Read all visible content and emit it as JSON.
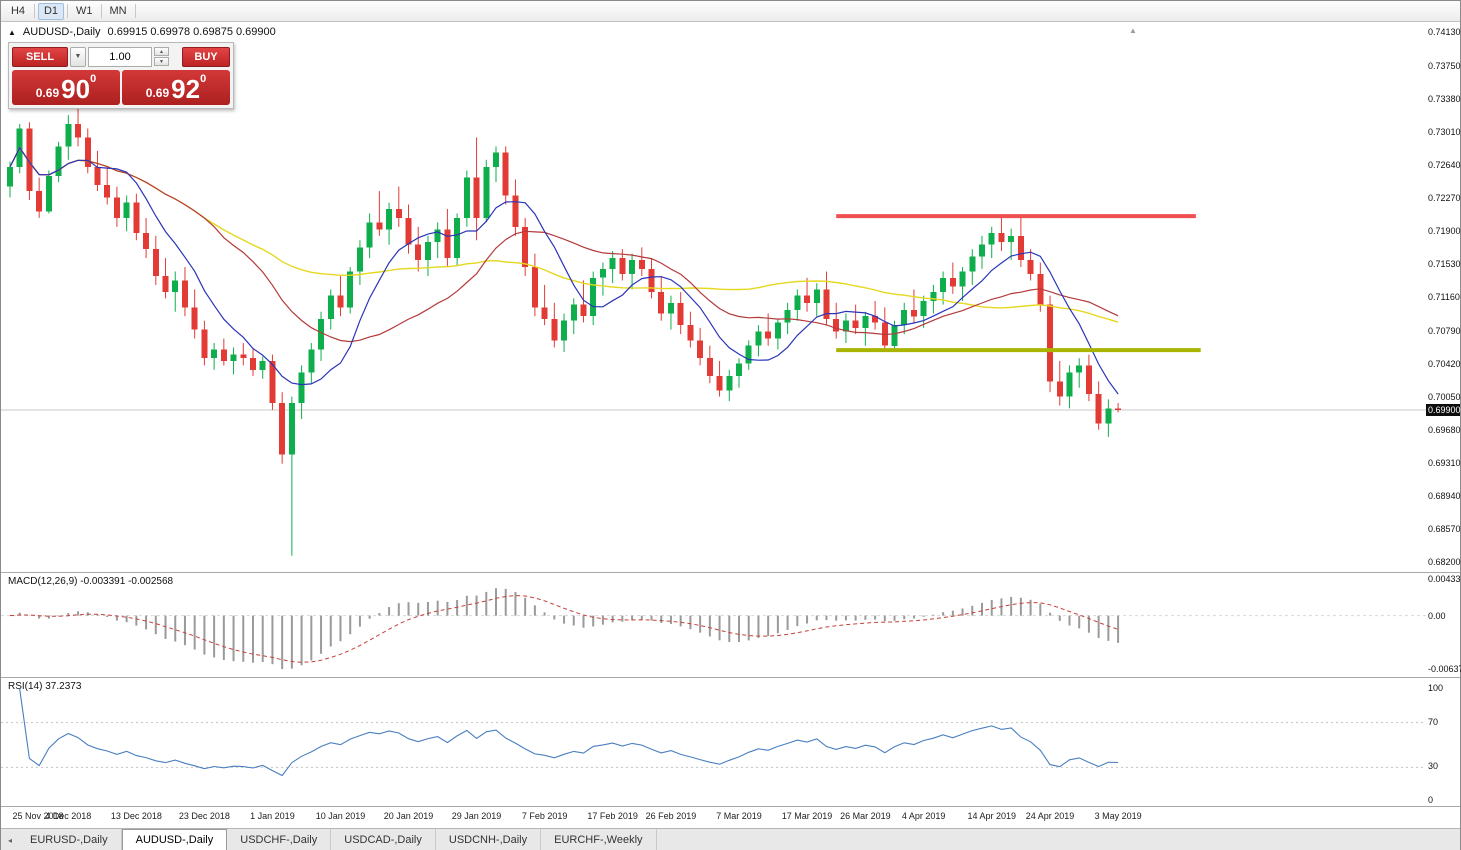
{
  "toolbar": {
    "buttons": [
      {
        "label": "H4",
        "active": false
      },
      {
        "label": "D1",
        "active": true
      },
      {
        "label": "W1",
        "active": false
      },
      {
        "label": "MN",
        "active": false
      }
    ]
  },
  "chart_header": {
    "marker": "▲",
    "symbol": "AUDUSD-,Daily",
    "ohlc": "0.69915 0.69978 0.69875 0.69900"
  },
  "trade_panel": {
    "sell_label": "SELL",
    "buy_label": "BUY",
    "volume": "1.00",
    "dropdown_glyph": "▼",
    "spin_up_glyph": "▲",
    "spin_down_glyph": "▼",
    "bid": {
      "prefix": "0.69",
      "big": "90",
      "sup": "0"
    },
    "ask": {
      "prefix": "0.69",
      "big": "92",
      "sup": "0"
    }
  },
  "price_axis": {
    "ticks": [
      "0.74130",
      "0.73750",
      "0.73380",
      "0.73010",
      "0.72640",
      "0.72270",
      "0.71900",
      "0.71530",
      "0.71160",
      "0.70790",
      "0.70420",
      "0.70050",
      "0.69680",
      "0.69310",
      "0.68940",
      "0.68570",
      "0.68200"
    ],
    "current": "0.69900"
  },
  "macd_panel": {
    "label": "MACD(12,26,9) -0.003391 -0.002568",
    "axis_ticks": [
      {
        "value": 0.004331,
        "label": "0.004331"
      },
      {
        "value": 0,
        "label": "0.00"
      },
      {
        "value": -0.006377,
        "label": "-0.006377"
      }
    ]
  },
  "rsi_panel": {
    "label": "RSI(14) 37.2373",
    "axis_ticks": [
      {
        "value": 100,
        "label": "100"
      },
      {
        "value": 70,
        "label": "70"
      },
      {
        "value": 30,
        "label": "30"
      },
      {
        "value": 0,
        "label": "0"
      }
    ],
    "dashed_levels": [
      70,
      30
    ]
  },
  "tabbar": {
    "scroll_left_glyph": "◂",
    "tabs": [
      {
        "label": "EURUSD-,Daily",
        "active": false
      },
      {
        "label": "AUDUSD-,Daily",
        "active": true
      },
      {
        "label": "USDCHF-,Daily",
        "active": false
      },
      {
        "label": "USDCAD-,Daily",
        "active": false
      },
      {
        "label": "USDCNH-,Daily",
        "active": false
      },
      {
        "label": "EURCHF-,Weekly",
        "active": false
      }
    ]
  },
  "chart_data": {
    "type": "candlestick",
    "symbol": "AUDUSD-",
    "timeframe": "Daily",
    "price_range": {
      "top": 0.7413,
      "bottom": 0.682
    },
    "current_price": 0.699,
    "x_labels": [
      {
        "label": "25 Nov 2018",
        "bar": 0
      },
      {
        "label": "4 Dec 2018",
        "bar": 6
      },
      {
        "label": "13 Dec 2018",
        "bar": 13
      },
      {
        "label": "23 Dec 2018",
        "bar": 20
      },
      {
        "label": "1 Jan 2019",
        "bar": 27
      },
      {
        "label": "10 Jan 2019",
        "bar": 34
      },
      {
        "label": "20 Jan 2019",
        "bar": 41
      },
      {
        "label": "29 Jan 2019",
        "bar": 48
      },
      {
        "label": "7 Feb 2019",
        "bar": 55
      },
      {
        "label": "17 Feb 2019",
        "bar": 62
      },
      {
        "label": "26 Feb 2019",
        "bar": 68
      },
      {
        "label": "7 Mar 2019",
        "bar": 75
      },
      {
        "label": "17 Mar 2019",
        "bar": 82
      },
      {
        "label": "26 Mar 2019",
        "bar": 88
      },
      {
        "label": "4 Apr 2019",
        "bar": 94
      },
      {
        "label": "14 Apr 2019",
        "bar": 101
      },
      {
        "label": "24 Apr 2019",
        "bar": 107
      },
      {
        "label": "3 May 2019",
        "bar": 114
      }
    ],
    "candles": [
      [
        0.724,
        0.7268,
        0.7228,
        0.7262
      ],
      [
        0.7262,
        0.731,
        0.7255,
        0.7305
      ],
      [
        0.7305,
        0.7312,
        0.7225,
        0.7235
      ],
      [
        0.7235,
        0.725,
        0.7205,
        0.7212
      ],
      [
        0.7212,
        0.7258,
        0.721,
        0.7252
      ],
      [
        0.7252,
        0.729,
        0.7245,
        0.7285
      ],
      [
        0.7285,
        0.732,
        0.727,
        0.731
      ],
      [
        0.731,
        0.733,
        0.7285,
        0.7295
      ],
      [
        0.7295,
        0.7305,
        0.7255,
        0.7262
      ],
      [
        0.7262,
        0.728,
        0.7235,
        0.7242
      ],
      [
        0.7242,
        0.7262,
        0.722,
        0.7228
      ],
      [
        0.7228,
        0.724,
        0.7195,
        0.7205
      ],
      [
        0.7205,
        0.723,
        0.719,
        0.7222
      ],
      [
        0.7222,
        0.7232,
        0.718,
        0.7188
      ],
      [
        0.7188,
        0.7205,
        0.716,
        0.717
      ],
      [
        0.717,
        0.7185,
        0.713,
        0.714
      ],
      [
        0.714,
        0.716,
        0.7115,
        0.7122
      ],
      [
        0.7122,
        0.7145,
        0.71,
        0.7135
      ],
      [
        0.7135,
        0.715,
        0.7095,
        0.7105
      ],
      [
        0.7105,
        0.7125,
        0.707,
        0.708
      ],
      [
        0.708,
        0.709,
        0.704,
        0.7048
      ],
      [
        0.7048,
        0.7065,
        0.7035,
        0.7058
      ],
      [
        0.7058,
        0.707,
        0.704,
        0.7045
      ],
      [
        0.7045,
        0.706,
        0.703,
        0.7052
      ],
      [
        0.7052,
        0.7065,
        0.704,
        0.7048
      ],
      [
        0.7048,
        0.7058,
        0.7028,
        0.7035
      ],
      [
        0.7035,
        0.705,
        0.7025,
        0.7045
      ],
      [
        0.7045,
        0.7052,
        0.699,
        0.6998
      ],
      [
        0.6998,
        0.701,
        0.693,
        0.694
      ],
      [
        0.694,
        0.7005,
        0.6827,
        0.6998
      ],
      [
        0.6998,
        0.704,
        0.698,
        0.7032
      ],
      [
        0.7032,
        0.7065,
        0.702,
        0.7058
      ],
      [
        0.7058,
        0.71,
        0.7045,
        0.7092
      ],
      [
        0.7092,
        0.7125,
        0.708,
        0.7118
      ],
      [
        0.7118,
        0.714,
        0.7095,
        0.7105
      ],
      [
        0.7105,
        0.715,
        0.7098,
        0.7145
      ],
      [
        0.7145,
        0.718,
        0.713,
        0.7172
      ],
      [
        0.7172,
        0.721,
        0.716,
        0.72
      ],
      [
        0.72,
        0.7235,
        0.7185,
        0.7192
      ],
      [
        0.7192,
        0.7222,
        0.7175,
        0.7215
      ],
      [
        0.7215,
        0.724,
        0.7195,
        0.7205
      ],
      [
        0.7205,
        0.722,
        0.7165,
        0.7175
      ],
      [
        0.7175,
        0.7195,
        0.7145,
        0.7158
      ],
      [
        0.7158,
        0.7185,
        0.714,
        0.7178
      ],
      [
        0.7178,
        0.72,
        0.716,
        0.7192
      ],
      [
        0.7192,
        0.7215,
        0.715,
        0.716
      ],
      [
        0.716,
        0.721,
        0.7152,
        0.7205
      ],
      [
        0.7205,
        0.7258,
        0.7195,
        0.725
      ],
      [
        0.725,
        0.7295,
        0.718,
        0.7205
      ],
      [
        0.7205,
        0.727,
        0.72,
        0.7262
      ],
      [
        0.7262,
        0.7285,
        0.7245,
        0.7278
      ],
      [
        0.7278,
        0.7285,
        0.722,
        0.723
      ],
      [
        0.723,
        0.7248,
        0.7185,
        0.7195
      ],
      [
        0.7195,
        0.7205,
        0.714,
        0.715
      ],
      [
        0.715,
        0.7165,
        0.7095,
        0.7105
      ],
      [
        0.7105,
        0.713,
        0.7085,
        0.7092
      ],
      [
        0.7092,
        0.711,
        0.706,
        0.7068
      ],
      [
        0.7068,
        0.7098,
        0.7055,
        0.709
      ],
      [
        0.709,
        0.7115,
        0.7075,
        0.7108
      ],
      [
        0.7108,
        0.7135,
        0.7088,
        0.7095
      ],
      [
        0.7095,
        0.7145,
        0.7085,
        0.7138
      ],
      [
        0.7138,
        0.7155,
        0.7118,
        0.7148
      ],
      [
        0.7148,
        0.7168,
        0.7132,
        0.716
      ],
      [
        0.716,
        0.717,
        0.7135,
        0.7142
      ],
      [
        0.7142,
        0.7165,
        0.7125,
        0.7158
      ],
      [
        0.7158,
        0.7172,
        0.714,
        0.7148
      ],
      [
        0.7148,
        0.716,
        0.7115,
        0.7122
      ],
      [
        0.7122,
        0.714,
        0.709,
        0.7098
      ],
      [
        0.7098,
        0.7118,
        0.708,
        0.711
      ],
      [
        0.711,
        0.7122,
        0.7075,
        0.7085
      ],
      [
        0.7085,
        0.71,
        0.706,
        0.7068
      ],
      [
        0.7068,
        0.7082,
        0.704,
        0.7048
      ],
      [
        0.7048,
        0.7062,
        0.702,
        0.7028
      ],
      [
        0.7028,
        0.7045,
        0.7005,
        0.7012
      ],
      [
        0.7012,
        0.7035,
        0.7,
        0.7028
      ],
      [
        0.7028,
        0.7048,
        0.7015,
        0.7042
      ],
      [
        0.7042,
        0.7068,
        0.7035,
        0.7062
      ],
      [
        0.7062,
        0.7085,
        0.705,
        0.7078
      ],
      [
        0.7078,
        0.7098,
        0.7062,
        0.707
      ],
      [
        0.707,
        0.7092,
        0.7058,
        0.7088
      ],
      [
        0.7088,
        0.711,
        0.7075,
        0.7102
      ],
      [
        0.7102,
        0.7125,
        0.709,
        0.7118
      ],
      [
        0.7118,
        0.7138,
        0.71,
        0.711
      ],
      [
        0.711,
        0.7132,
        0.7095,
        0.7125
      ],
      [
        0.7125,
        0.7145,
        0.7085,
        0.7092
      ],
      [
        0.7092,
        0.711,
        0.707,
        0.7078
      ],
      [
        0.7078,
        0.7098,
        0.7065,
        0.709
      ],
      [
        0.709,
        0.7108,
        0.7075,
        0.7082
      ],
      [
        0.7082,
        0.71,
        0.7062,
        0.7095
      ],
      [
        0.7095,
        0.7112,
        0.708,
        0.7088
      ],
      [
        0.7088,
        0.7105,
        0.7055,
        0.7062
      ],
      [
        0.7062,
        0.709,
        0.7055,
        0.7085
      ],
      [
        0.7085,
        0.711,
        0.7075,
        0.7102
      ],
      [
        0.7102,
        0.7125,
        0.7088,
        0.7095
      ],
      [
        0.7095,
        0.7118,
        0.7082,
        0.7112
      ],
      [
        0.7112,
        0.713,
        0.7098,
        0.7122
      ],
      [
        0.7122,
        0.7145,
        0.7108,
        0.7138
      ],
      [
        0.7138,
        0.7155,
        0.712,
        0.7128
      ],
      [
        0.7128,
        0.715,
        0.7112,
        0.7145
      ],
      [
        0.7145,
        0.717,
        0.713,
        0.7162
      ],
      [
        0.7162,
        0.7185,
        0.7148,
        0.7175
      ],
      [
        0.7175,
        0.7195,
        0.716,
        0.7188
      ],
      [
        0.7188,
        0.7206,
        0.7168,
        0.7178
      ],
      [
        0.7178,
        0.7193,
        0.7158,
        0.7185
      ],
      [
        0.7185,
        0.7205,
        0.715,
        0.7158
      ],
      [
        0.7158,
        0.717,
        0.7135,
        0.7142
      ],
      [
        0.7142,
        0.7155,
        0.71,
        0.7108
      ],
      [
        0.7108,
        0.7118,
        0.701,
        0.7022
      ],
      [
        0.7022,
        0.7045,
        0.6995,
        0.7005
      ],
      [
        0.7005,
        0.704,
        0.6992,
        0.7032
      ],
      [
        0.7032,
        0.7048,
        0.7015,
        0.704
      ],
      [
        0.704,
        0.7052,
        0.7,
        0.7008
      ],
      [
        0.7008,
        0.7022,
        0.6968,
        0.6975
      ],
      [
        0.6975,
        0.7002,
        0.696,
        0.69915
      ],
      [
        0.69915,
        0.69978,
        0.69875,
        0.699
      ]
    ],
    "hlines": [
      {
        "name": "resistance",
        "price": 0.7207,
        "from_bar": 85,
        "to_bar": 122,
        "color": "#f04f4f",
        "width": 4
      },
      {
        "name": "support",
        "price": 0.7057,
        "from_bar": 85,
        "to_bar": 122.5,
        "color": "#a9b400",
        "width": 4
      }
    ],
    "macd": {
      "fast": 12,
      "slow": 26,
      "signal": 9,
      "value": -0.003391,
      "signal_value": -0.002568,
      "range": {
        "top": 0.0045,
        "bottom": -0.007
      }
    },
    "rsi": {
      "period": 14,
      "value": 37.2373
    },
    "colors": {
      "up": "#0fae4d",
      "down": "#e23b36",
      "ma_fast": "#2a35b8",
      "ma_mid": "#b43a3a",
      "ma_slow": "#e6d81f",
      "macd_hist": "#9a9a9a",
      "macd_signal": "#c4403c",
      "rsi_line": "#4a7fc0",
      "current_line": "#c8c8c8",
      "level_line": "#c4c4c4"
    }
  }
}
